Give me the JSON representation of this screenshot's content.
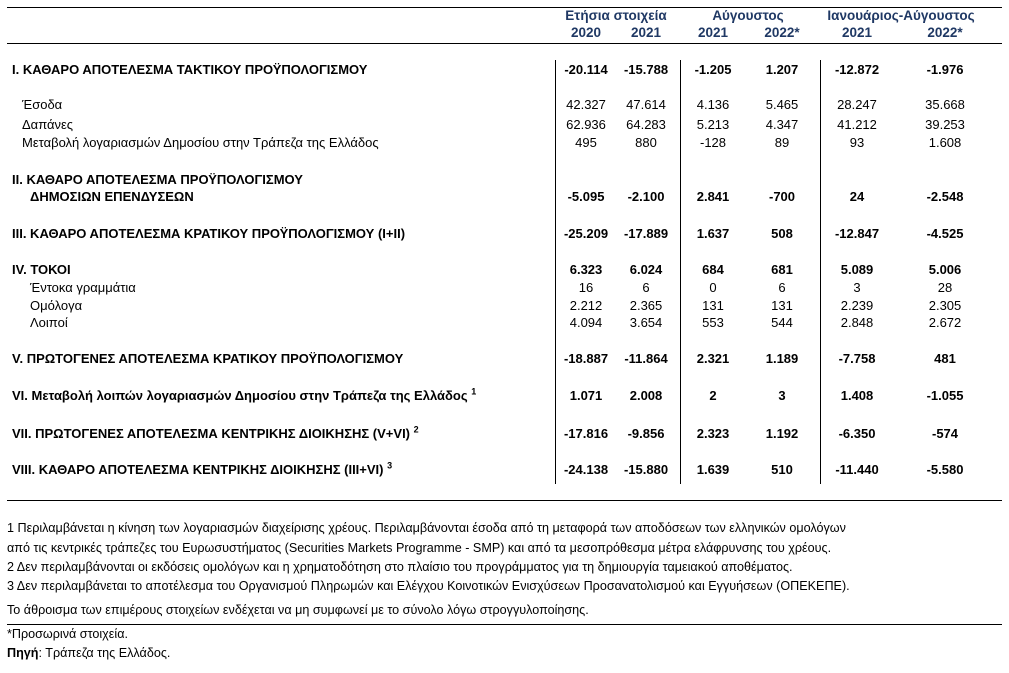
{
  "header": {
    "groups": [
      "Ετήσια στοιχεία",
      "Αύγουστος",
      "Ιανουάριος-Αύγουστος"
    ],
    "years": [
      "2020",
      "2021",
      "2021",
      "2022*",
      "2021",
      "2022*"
    ]
  },
  "rows": [
    {
      "label": "I. ΚΑΘΑΡΟ ΑΠΟΤΕΛΕΣΜΑ  ΤΑΚΤΙΚΟΥ ΠΡΟΫΠΟΛΟΓΙΣΜΟΥ",
      "bold": true,
      "values": [
        "-20.114",
        "-15.788",
        "-1.205",
        "1.207",
        "-12.872",
        "-1.976"
      ]
    },
    {
      "label": "Έσοδα",
      "bold": false,
      "values": [
        "42.327",
        "47.614",
        "4.136",
        "5.465",
        "28.247",
        "35.668"
      ]
    },
    {
      "label": "Δαπάνες",
      "bold": false,
      "values": [
        "62.936",
        "64.283",
        "5.213",
        "4.347",
        "41.212",
        "39.253"
      ]
    },
    {
      "label": "Μεταβολή λογαριασμών Δημοσίου στην Τράπεζα της Ελλάδος",
      "bold": false,
      "values": [
        "495",
        "880",
        "-128",
        "89",
        "93",
        "1.608"
      ]
    },
    {
      "label": "II. ΚΑΘΑΡΟ ΑΠΟΤΕΛΕΣΜΑ ΠΡΟΫΠΟΛΟΓΙΣΜΟΥ",
      "label2": "ΔΗΜΟΣΙΩΝ ΕΠΕΝΔΥΣΕΩΝ",
      "bold": true,
      "values": [
        "-5.095",
        "-2.100",
        "2.841",
        "-700",
        "24",
        "-2.548"
      ]
    },
    {
      "label": "III. ΚΑΘΑΡΟ ΑΠΟΤΕΛΕΣΜΑ ΚΡΑΤΙΚΟΥ ΠΡΟΫΠΟΛΟΓΙΣΜΟΥ (I+II)",
      "bold": true,
      "values": [
        "-25.209",
        "-17.889",
        "1.637",
        "508",
        "-12.847",
        "-4.525"
      ]
    },
    {
      "label": "IV. ΤΟΚΟΙ",
      "bold": true,
      "values": [
        "6.323",
        "6.024",
        "684",
        "681",
        "5.089",
        "5.006"
      ]
    },
    {
      "label": "Έντοκα γραμμάτια",
      "bold": false,
      "values": [
        "16",
        "6",
        "0",
        "6",
        "3",
        "28"
      ]
    },
    {
      "label": "Ομόλογα",
      "bold": false,
      "values": [
        "2.212",
        "2.365",
        "131",
        "131",
        "2.239",
        "2.305"
      ]
    },
    {
      "label": "Λοιποί",
      "bold": false,
      "values": [
        "4.094",
        "3.654",
        "553",
        "544",
        "2.848",
        "2.672"
      ]
    },
    {
      "label": "V. ΠΡΩΤΟΓΕΝΕΣ ΑΠΟΤΕΛΕΣΜΑ  ΚΡΑΤΙΚΟΥ ΠΡΟΫΠΟΛΟΓΙΣΜΟΥ",
      "bold": true,
      "values": [
        "-18.887",
        "-11.864",
        "2.321",
        "1.189",
        "-7.758",
        "481"
      ]
    },
    {
      "label": "VI. Μεταβολή λοιπών λογαριασμών Δημοσίου στην Τράπεζα της Ελλάδος",
      "note": "1",
      "bold": true,
      "values": [
        "1.071",
        "2.008",
        "2",
        "3",
        "1.408",
        "-1.055"
      ]
    },
    {
      "label": "VII. ΠΡΩΤΟΓΕΝΕΣ ΑΠΟΤΕΛΕΣΜΑ ΚΕΝΤΡΙΚΗΣ ΔΙΟΙΚΗΣΗΣ (V+VI)",
      "note": "2",
      "bold": true,
      "values": [
        "-17.816",
        "-9.856",
        "2.323",
        "1.192",
        "-6.350",
        "-574"
      ]
    },
    {
      "label": "VIII. ΚΑΘΑΡΟ ΑΠΟΤΕΛΕΣΜΑ ΚΕΝΤΡΙΚΗΣ ΔΙΟΙΚΗΣΗΣ (III+VI)",
      "note": "3",
      "bold": true,
      "values": [
        "-24.138",
        "-15.880",
        "1.639",
        "510",
        "-11.440",
        "-5.580"
      ]
    }
  ],
  "footnotes": [
    "1 Περιλαμβάνεται η κίνηση των λογαριασμών διαχείρισης χρέους. Περιλαμβάνονται έσοδα από τη μεταφορά των αποδόσεων των ελληνικών ομολόγων",
    "από τις κεντρικές τράπεζες του Ευρωσυστήματος (Securities Markets Programme - SMP) και από τα μεσοπρόθεσμα μέτρα ελάφρυνσης του χρέους.",
    "2 Δεν περιλαμβάνονται οι εκδόσεις ομολόγων και η χρηματοδότηση στο πλαίσιο του προγράμματος για τη δημιουργία ταμειακού αποθέματος.",
    "3 Δεν περιλαμβάνεται το αποτέλεσμα του Οργανισμού Πληρωμών και Ελέγχου Κοινοτικών Ενισχύσεων Προσανατολισμού και Εγγυήσεων (ΟΠΕΚΕΠΕ).",
    "Το άθροισμα των επιμέρους στοιχείων ενδέχεται να μη συμφωνεί με το σύνολο λόγω στρογγυλοποίησης."
  ],
  "provisional_note": "*Προσωρινά στοιχεία.",
  "source": {
    "label": "Πηγή",
    "text": ": Τράπεζα της Ελλάδος."
  },
  "colors": {
    "header_text": "#1f3864"
  }
}
